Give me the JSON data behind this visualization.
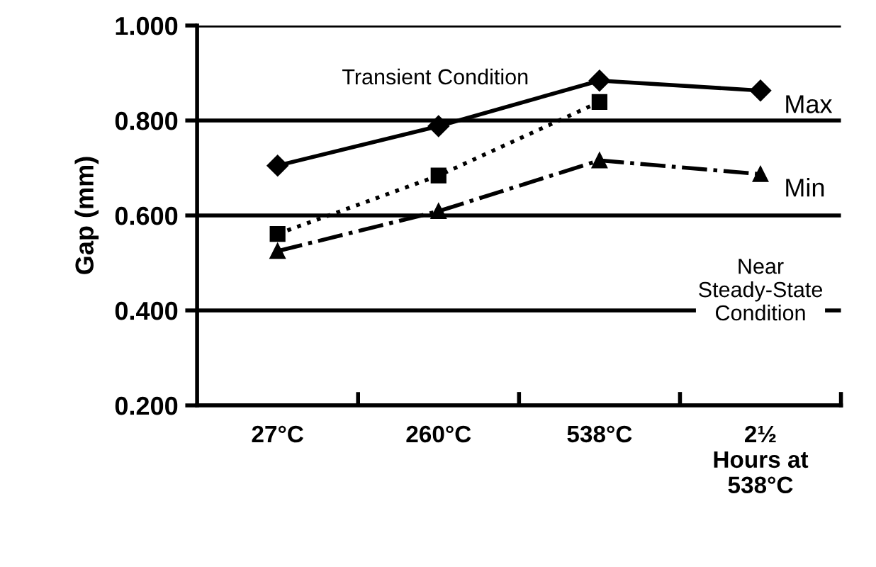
{
  "chart_data": {
    "type": "line",
    "ylabel": "Gap (mm)",
    "categories": [
      "27°C",
      "260°C",
      "538°C",
      "2½\nHours at\n538°C"
    ],
    "series": [
      {
        "name": "Max",
        "color": "#000000",
        "values": [
          0.705,
          0.788,
          0.884,
          0.863
        ],
        "marker": "diamond",
        "line_style": "solid"
      },
      {
        "color": "#000000",
        "values": [
          0.561,
          0.684,
          0.839,
          null
        ],
        "marker": "square",
        "line_style": "dotted"
      },
      {
        "name": "Min",
        "color": "#000000",
        "values": [
          0.525,
          0.609,
          0.716,
          0.687
        ],
        "marker": "triangle",
        "line_style": "dashdot"
      }
    ],
    "ylim": [
      0.2,
      1.0
    ],
    "yticks": [
      {
        "value": 0.2,
        "label": "0.200"
      },
      {
        "value": 0.4,
        "label": "0.400"
      },
      {
        "value": 0.6,
        "label": "0.600"
      },
      {
        "value": 0.8,
        "label": "0.800"
      },
      {
        "value": 1.0,
        "label": "1.000"
      }
    ],
    "grid": "y",
    "legend": false,
    "annotations": [
      "Transient Condition",
      "Near\nSteady-State\nCondition"
    ]
  }
}
